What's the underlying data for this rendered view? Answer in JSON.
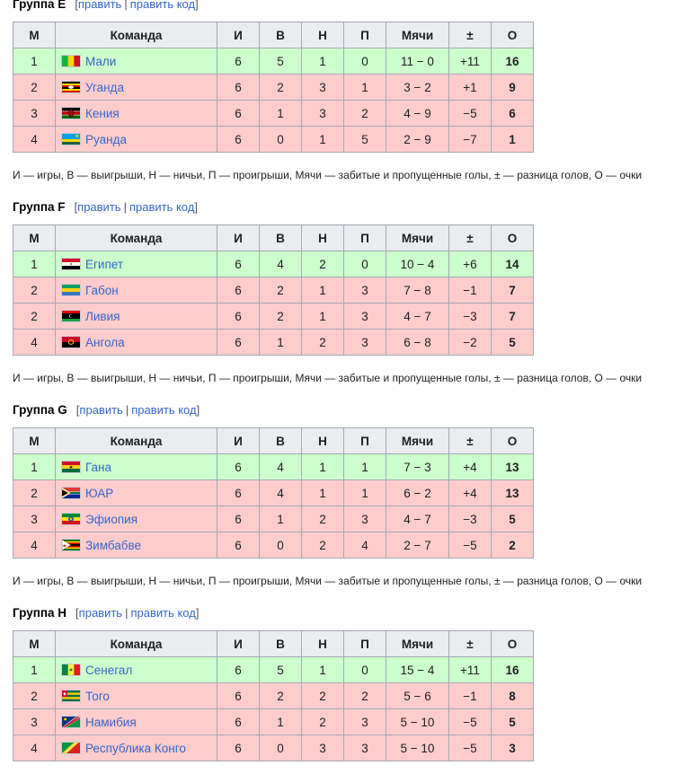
{
  "headers": {
    "m": "М",
    "team": "Команда",
    "i": "И",
    "v": "В",
    "n": "Н",
    "p": "П",
    "goals": "Мячи",
    "diff": "±",
    "o": "О"
  },
  "edit_links": {
    "edit": "править",
    "edit_code": "править код",
    "open": "[",
    "close": "]",
    "sep": "|"
  },
  "legend": "И — игры, В — выигрыши, Н — ничьи, П — проигрыши, Мячи — забитые и пропущенные голы, ± — разница голов, О — очки",
  "groups": [
    {
      "name": "Группа E",
      "rows": [
        {
          "m": "1",
          "team": "Мали",
          "flag": "mali-flag-icon",
          "i": "6",
          "v": "5",
          "n": "1",
          "p": "0",
          "goals": "11 − 0",
          "diff": "+11",
          "o": "16",
          "status": "advanced"
        },
        {
          "m": "2",
          "team": "Уганда",
          "flag": "uganda-flag-icon",
          "i": "6",
          "v": "2",
          "n": "3",
          "p": "1",
          "goals": "3 − 2",
          "diff": "+1",
          "o": "9",
          "status": "eliminated"
        },
        {
          "m": "3",
          "team": "Кения",
          "flag": "kenya-flag-icon",
          "i": "6",
          "v": "1",
          "n": "3",
          "p": "2",
          "goals": "4 − 9",
          "diff": "−5",
          "o": "6",
          "status": "eliminated"
        },
        {
          "m": "4",
          "team": "Руанда",
          "flag": "rwanda-flag-icon",
          "i": "6",
          "v": "0",
          "n": "1",
          "p": "5",
          "goals": "2 − 9",
          "diff": "−7",
          "o": "1",
          "status": "eliminated"
        }
      ]
    },
    {
      "name": "Группа F",
      "rows": [
        {
          "m": "1",
          "team": "Египет",
          "flag": "egypt-flag-icon",
          "i": "6",
          "v": "4",
          "n": "2",
          "p": "0",
          "goals": "10 − 4",
          "diff": "+6",
          "o": "14",
          "status": "advanced"
        },
        {
          "m": "2",
          "team": "Габон",
          "flag": "gabon-flag-icon",
          "i": "6",
          "v": "2",
          "n": "1",
          "p": "3",
          "goals": "7 − 8",
          "diff": "−1",
          "o": "7",
          "status": "eliminated"
        },
        {
          "m": "2",
          "team": "Ливия",
          "flag": "libya-flag-icon",
          "i": "6",
          "v": "2",
          "n": "1",
          "p": "3",
          "goals": "4 − 7",
          "diff": "−3",
          "o": "7",
          "status": "eliminated"
        },
        {
          "m": "4",
          "team": "Ангола",
          "flag": "angola-flag-icon",
          "i": "6",
          "v": "1",
          "n": "2",
          "p": "3",
          "goals": "6 − 8",
          "diff": "−2",
          "o": "5",
          "status": "eliminated"
        }
      ]
    },
    {
      "name": "Группа G",
      "rows": [
        {
          "m": "1",
          "team": "Гана",
          "flag": "ghana-flag-icon",
          "i": "6",
          "v": "4",
          "n": "1",
          "p": "1",
          "goals": "7 − 3",
          "diff": "+4",
          "o": "13",
          "status": "advanced"
        },
        {
          "m": "2",
          "team": "ЮАР",
          "flag": "south-africa-flag-icon",
          "i": "6",
          "v": "4",
          "n": "1",
          "p": "1",
          "goals": "6 − 2",
          "diff": "+4",
          "o": "13",
          "status": "eliminated"
        },
        {
          "m": "3",
          "team": "Эфиопия",
          "flag": "ethiopia-flag-icon",
          "i": "6",
          "v": "1",
          "n": "2",
          "p": "3",
          "goals": "4 − 7",
          "diff": "−3",
          "o": "5",
          "status": "eliminated"
        },
        {
          "m": "4",
          "team": "Зимбабве",
          "flag": "zimbabwe-flag-icon",
          "i": "6",
          "v": "0",
          "n": "2",
          "p": "4",
          "goals": "2 − 7",
          "diff": "−5",
          "o": "2",
          "status": "eliminated"
        }
      ]
    },
    {
      "name": "Группа H",
      "rows": [
        {
          "m": "1",
          "team": "Сенегал",
          "flag": "senegal-flag-icon",
          "i": "6",
          "v": "5",
          "n": "1",
          "p": "0",
          "goals": "15 − 4",
          "diff": "+11",
          "o": "16",
          "status": "advanced"
        },
        {
          "m": "2",
          "team": "Того",
          "flag": "togo-flag-icon",
          "i": "6",
          "v": "2",
          "n": "2",
          "p": "2",
          "goals": "5 − 6",
          "diff": "−1",
          "o": "8",
          "status": "eliminated"
        },
        {
          "m": "3",
          "team": "Намибия",
          "flag": "namibia-flag-icon",
          "i": "6",
          "v": "1",
          "n": "2",
          "p": "3",
          "goals": "5 − 10",
          "diff": "−5",
          "o": "5",
          "status": "eliminated"
        },
        {
          "m": "4",
          "team": "Республика Конго",
          "flag": "congo-flag-icon",
          "i": "6",
          "v": "0",
          "n": "3",
          "p": "3",
          "goals": "5 − 10",
          "diff": "−5",
          "o": "3",
          "status": "eliminated"
        }
      ]
    }
  ]
}
